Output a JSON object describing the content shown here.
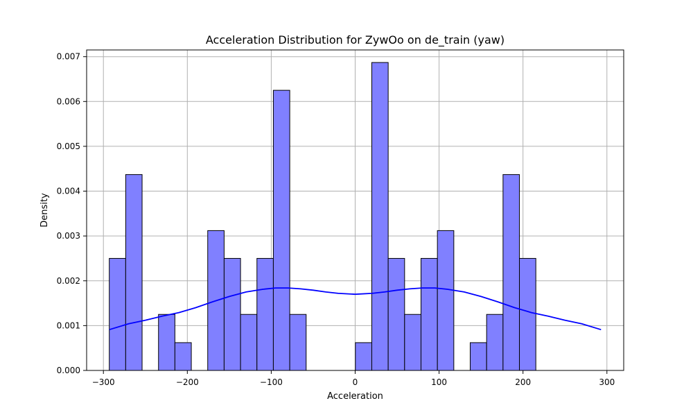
{
  "chart_data": {
    "type": "bar",
    "title": "Acceleration Distribution for ZywOo on de_train (yaw)",
    "xlabel": "Acceleration",
    "ylabel": "Density",
    "xlim": [
      -320,
      320
    ],
    "ylim": [
      0,
      0.00715
    ],
    "grid": true,
    "x_ticks": [
      -300,
      -200,
      -100,
      0,
      100,
      200,
      300
    ],
    "x_tick_labels": [
      "−300",
      "−200",
      "−100",
      "0",
      "100",
      "200",
      "300"
    ],
    "y_ticks": [
      0,
      0.001,
      0.002,
      0.003,
      0.004,
      0.005,
      0.006,
      0.007
    ],
    "y_tick_labels": [
      "0.000",
      "0.001",
      "0.002",
      "0.003",
      "0.004",
      "0.005",
      "0.006",
      "0.007"
    ],
    "bin_start": -293.0,
    "bin_width": 19.55,
    "densities": [
      0.0025,
      0.00437,
      0.0,
      0.00125,
      0.00062,
      0.0,
      0.00312,
      0.0025,
      0.00125,
      0.0025,
      0.00625,
      0.00125,
      0.0,
      0.0,
      0.0,
      0.00062,
      0.00687,
      0.0025,
      0.00125,
      0.0025,
      0.00312,
      0.0,
      0.00062,
      0.00125,
      0.00437,
      0.0025
    ],
    "kde": {
      "x": [
        -293,
        -270,
        -250,
        -230,
        -210,
        -190,
        -170,
        -150,
        -130,
        -110,
        -95,
        -80,
        -65,
        -50,
        -35,
        -20,
        0,
        20,
        35,
        50,
        65,
        80,
        95,
        110,
        130,
        150,
        170,
        190,
        210,
        230,
        250,
        270,
        293
      ],
      "y": [
        0.00091,
        0.00104,
        0.00112,
        0.00121,
        0.00129,
        0.0014,
        0.00153,
        0.00165,
        0.00175,
        0.00181,
        0.00184,
        0.00184,
        0.00182,
        0.00179,
        0.00175,
        0.00172,
        0.0017,
        0.00172,
        0.00175,
        0.00179,
        0.00182,
        0.00184,
        0.00184,
        0.00181,
        0.00175,
        0.00165,
        0.00153,
        0.0014,
        0.00129,
        0.00121,
        0.00112,
        0.00104,
        0.00091
      ]
    },
    "colors": {
      "bar_fill": "#8080ff",
      "bar_edge": "#000000",
      "kde_line": "#0000ff",
      "grid": "#b0b0b0"
    }
  }
}
